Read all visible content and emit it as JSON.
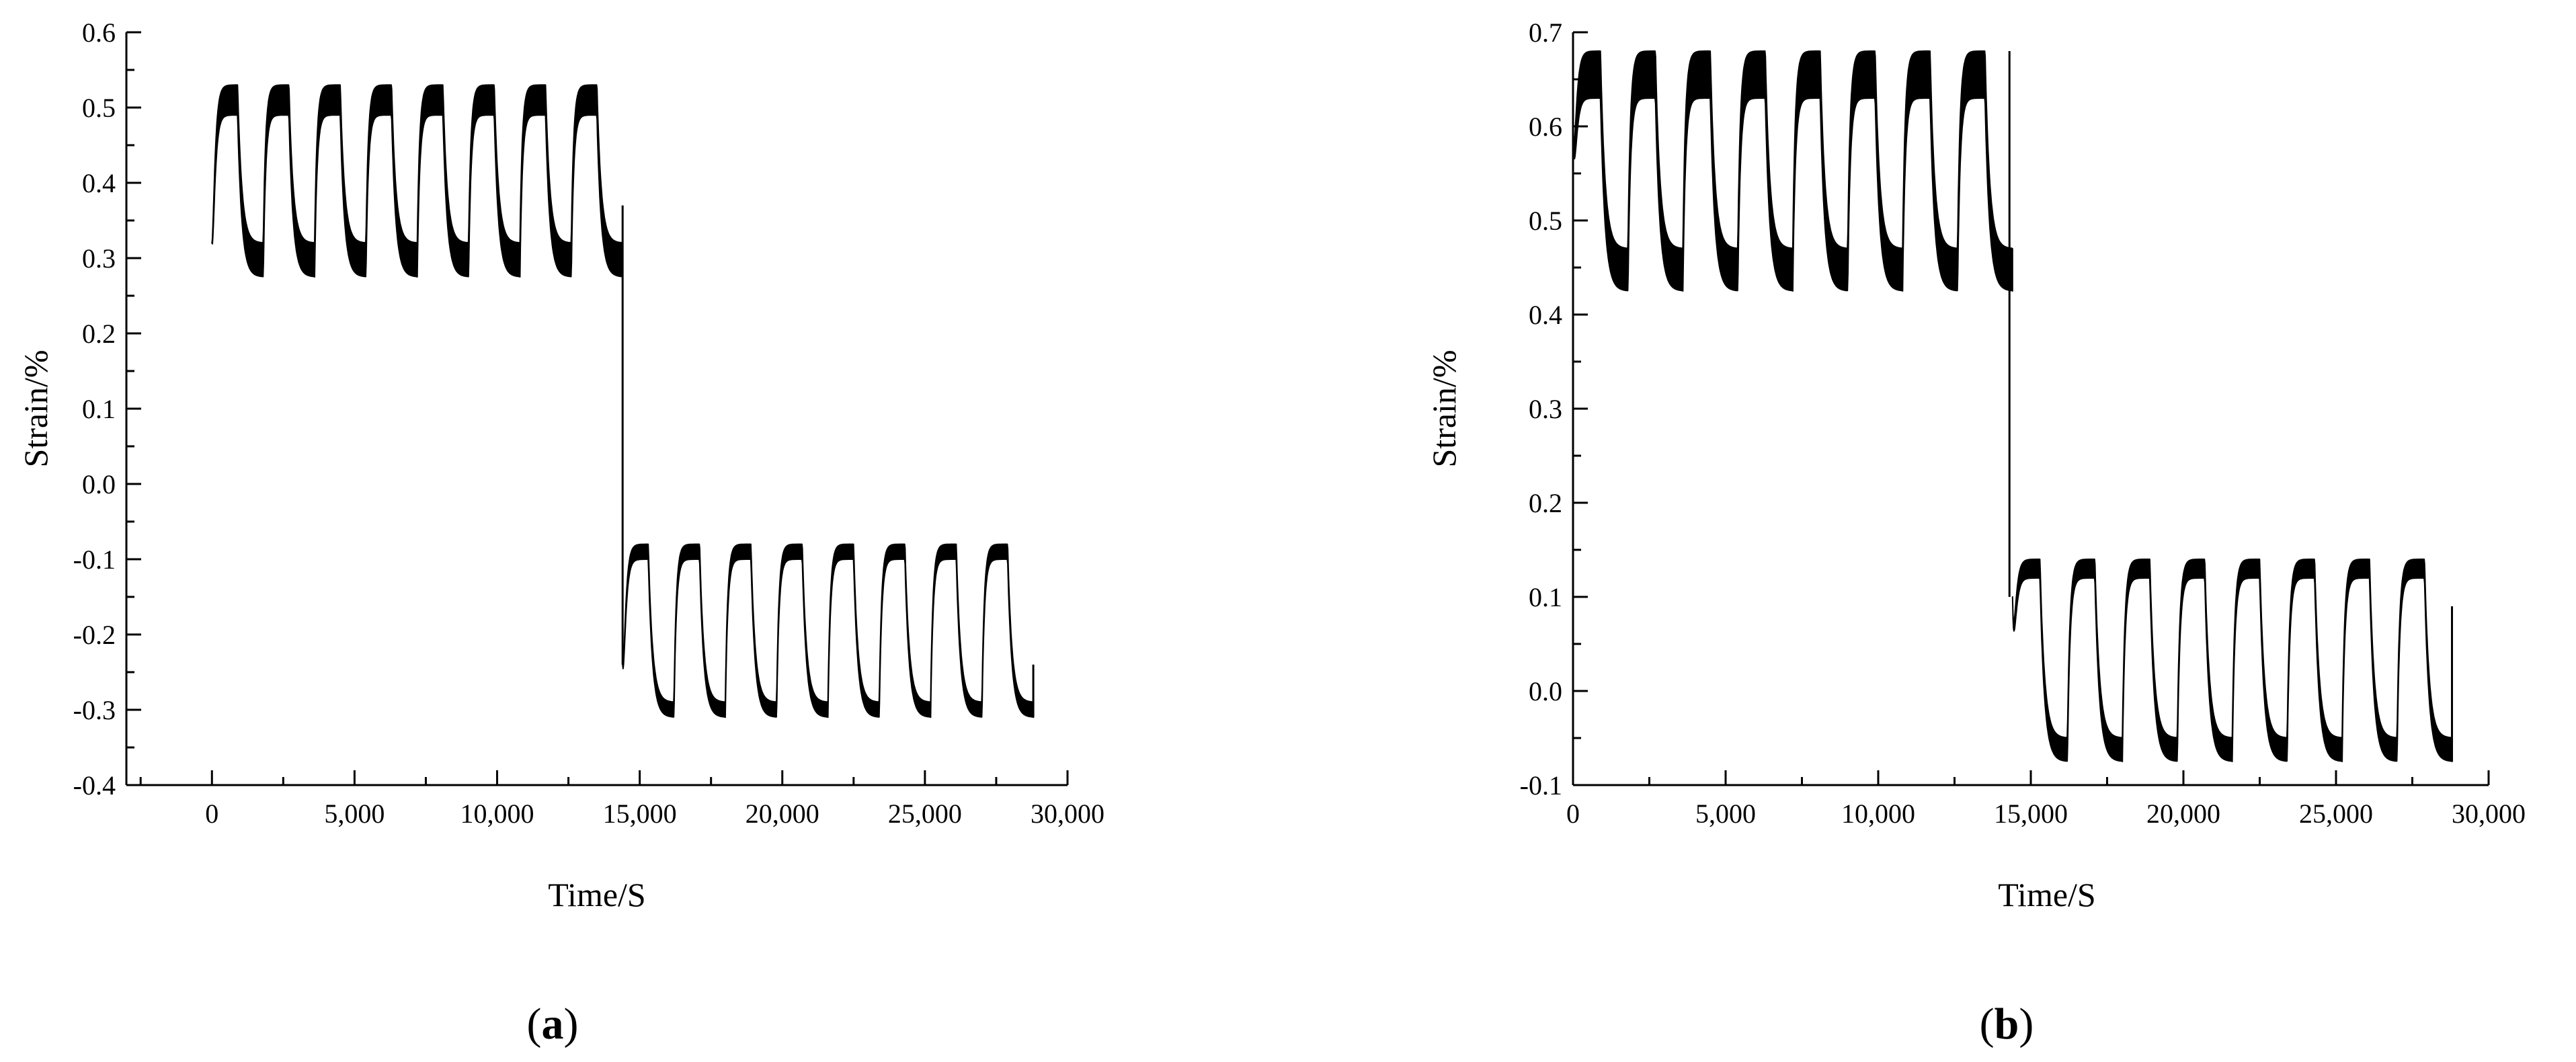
{
  "colors": {
    "background": "#ffffff",
    "ink": "#000000"
  },
  "chart_data": [
    {
      "type": "line",
      "panel_label": {
        "open": "(",
        "letter": "a",
        "close": ")"
      },
      "xlabel": "Time/S",
      "ylabel": "Strain/%",
      "xlim": [
        -3000,
        30000
      ],
      "ylim": [
        -0.4,
        0.6
      ],
      "xticks": [
        {
          "value": 0,
          "label": "0"
        },
        {
          "value": 5000,
          "label": "5,000"
        },
        {
          "value": 10000,
          "label": "10,000"
        },
        {
          "value": 15000,
          "label": "15,000"
        },
        {
          "value": 20000,
          "label": "20,000"
        },
        {
          "value": 25000,
          "label": "25,000"
        },
        {
          "value": 30000,
          "label": "30,000"
        }
      ],
      "yticks": [
        {
          "value": 0.6,
          "label": "0.6"
        },
        {
          "value": 0.5,
          "label": "0.5"
        },
        {
          "value": 0.4,
          "label": "0.4"
        },
        {
          "value": 0.3,
          "label": "0.3"
        },
        {
          "value": 0.2,
          "label": "0.2"
        },
        {
          "value": 0.1,
          "label": "0.1"
        },
        {
          "value": 0.0,
          "label": "0.0"
        },
        {
          "value": -0.1,
          "label": "-0.1"
        },
        {
          "value": -0.2,
          "label": "-0.2"
        },
        {
          "value": -0.3,
          "label": "-0.3"
        },
        {
          "value": -0.4,
          "label": "-0.4"
        }
      ],
      "grid": false,
      "series": [
        {
          "phase": "first half",
          "x_start": 0,
          "x_end": 14400,
          "cycles": 8,
          "period": 1800,
          "start_value": 0.32,
          "peak_upper": 0.53,
          "peak_lower": 0.49,
          "trough_upper": 0.32,
          "trough_lower": 0.275
        },
        {
          "phase": "second half",
          "x_start": 14400,
          "x_end": 28800,
          "cycles": 8,
          "period": 1800,
          "start_value": -0.24,
          "peak_upper": -0.08,
          "peak_lower": -0.1,
          "trough_upper": -0.29,
          "trough_lower": -0.31
        }
      ],
      "transition": {
        "x": 14400,
        "from": 0.37,
        "to": -0.24
      },
      "end_value": -0.24
    },
    {
      "type": "line",
      "panel_label": {
        "open": "(",
        "letter": "b",
        "close": ")"
      },
      "xlabel": "Time/S",
      "ylabel": "Strain/%",
      "xlim": [
        0,
        30000
      ],
      "ylim": [
        -0.1,
        0.7
      ],
      "xticks": [
        {
          "value": 0,
          "label": "0"
        },
        {
          "value": 5000,
          "label": "5,000"
        },
        {
          "value": 10000,
          "label": "10,000"
        },
        {
          "value": 15000,
          "label": "15,000"
        },
        {
          "value": 20000,
          "label": "20,000"
        },
        {
          "value": 25000,
          "label": "25,000"
        },
        {
          "value": 30000,
          "label": "30,000"
        }
      ],
      "yticks": [
        {
          "value": 0.7,
          "label": "0.7"
        },
        {
          "value": 0.6,
          "label": "0.6"
        },
        {
          "value": 0.5,
          "label": "0.5"
        },
        {
          "value": 0.4,
          "label": "0.4"
        },
        {
          "value": 0.3,
          "label": "0.3"
        },
        {
          "value": 0.2,
          "label": "0.2"
        },
        {
          "value": 0.1,
          "label": "0.1"
        },
        {
          "value": 0.0,
          "label": "0.0"
        },
        {
          "value": -0.1,
          "label": "-0.1"
        }
      ],
      "grid": false,
      "series": [
        {
          "phase": "first half",
          "x_start": 0,
          "x_end": 14400,
          "cycles": 8,
          "period": 1800,
          "start_value": 0.6,
          "peak_upper": 0.68,
          "peak_lower": 0.63,
          "trough_upper": 0.47,
          "trough_lower": 0.425
        },
        {
          "phase": "second half",
          "x_start": 14400,
          "x_end": 28800,
          "cycles": 8,
          "period": 1800,
          "start_value": 0.1,
          "peak_upper": 0.14,
          "peak_lower": 0.12,
          "trough_upper": -0.05,
          "trough_lower": -0.075
        }
      ],
      "transition": {
        "x": 14300,
        "from": 0.68,
        "to": 0.1
      },
      "end_value": 0.09
    }
  ]
}
